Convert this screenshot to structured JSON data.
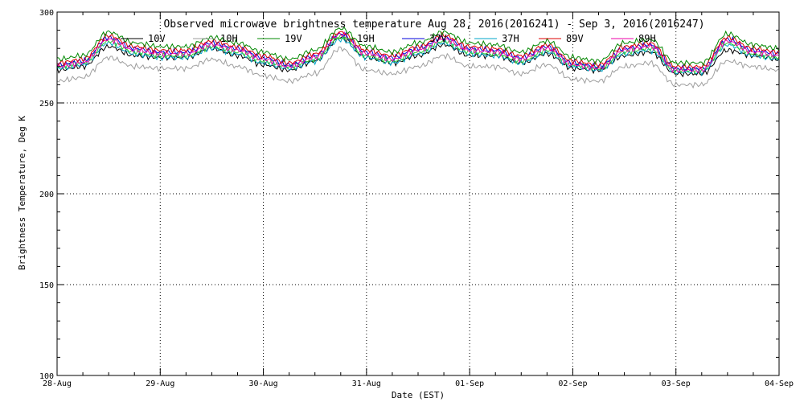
{
  "chart_data": {
    "type": "line",
    "title": "Observed microwave brightness temperature Aug 28, 2016(2016241) - Sep  3, 2016(2016247)",
    "xlabel": "Date (EST)",
    "ylabel": "Brightness Temperature, Deg K",
    "xlim": [
      "2016-08-28",
      "2016-09-04"
    ],
    "ylim": [
      100,
      300
    ],
    "x_ticks": [
      "28-Aug",
      "29-Aug",
      "30-Aug",
      "31-Aug",
      "01-Sep",
      "02-Sep",
      "03-Sep",
      "04-Sep"
    ],
    "y_ticks": [
      100,
      150,
      200,
      250,
      300
    ],
    "grid": true,
    "legend_position": "top-center",
    "x": [
      "2016-08-28 00:00",
      "2016-08-28 06:00",
      "2016-08-28 12:00",
      "2016-08-28 18:00",
      "2016-08-29 00:00",
      "2016-08-29 06:00",
      "2016-08-29 12:00",
      "2016-08-29 18:00",
      "2016-08-30 00:00",
      "2016-08-30 06:00",
      "2016-08-30 12:00",
      "2016-08-30 18:00",
      "2016-08-31 00:00",
      "2016-08-31 06:00",
      "2016-08-31 12:00",
      "2016-08-31 18:00",
      "2016-09-01 00:00",
      "2016-09-01 06:00",
      "2016-09-01 12:00",
      "2016-09-01 18:00",
      "2016-09-02 00:00",
      "2016-09-02 06:00",
      "2016-09-02 12:00",
      "2016-09-02 18:00",
      "2016-09-03 00:00",
      "2016-09-03 06:00",
      "2016-09-03 12:00",
      "2016-09-03 18:00",
      "2016-09-04 00:00"
    ],
    "series": [
      {
        "name": "10V",
        "color": "#000000",
        "values": [
          268,
          270,
          281,
          276,
          275,
          275,
          280,
          276,
          271,
          268,
          273,
          286,
          275,
          272,
          276,
          282,
          276,
          276,
          272,
          277,
          269,
          268,
          276,
          278,
          266,
          266,
          279,
          276,
          274
        ]
      },
      {
        "name": "10H",
        "color": "#9e9e9e",
        "values": [
          262,
          264,
          275,
          270,
          269,
          269,
          274,
          270,
          265,
          262,
          266,
          280,
          268,
          266,
          270,
          276,
          270,
          270,
          266,
          271,
          263,
          262,
          270,
          272,
          260,
          260,
          273,
          270,
          268
        ]
      },
      {
        "name": "19V",
        "color": "#008800",
        "values": [
          274,
          276,
          289,
          283,
          281,
          281,
          286,
          283,
          278,
          274,
          279,
          291,
          281,
          278,
          283,
          289,
          283,
          282,
          278,
          284,
          275,
          273,
          283,
          285,
          272,
          272,
          288,
          282,
          280
        ]
      },
      {
        "name": "19H",
        "color": "#33cc33",
        "values": [
          270,
          272,
          284,
          278,
          276,
          276,
          281,
          278,
          273,
          270,
          274,
          287,
          276,
          273,
          278,
          284,
          278,
          277,
          273,
          279,
          271,
          269,
          278,
          280,
          268,
          268,
          283,
          277,
          275
        ]
      },
      {
        "name": "37V",
        "color": "#0000dd",
        "values": [
          271,
          273,
          286,
          280,
          278,
          278,
          283,
          280,
          275,
          271,
          276,
          288,
          278,
          275,
          280,
          286,
          280,
          279,
          275,
          281,
          272,
          270,
          280,
          282,
          269,
          269,
          285,
          279,
          277
        ]
      },
      {
        "name": "37H",
        "color": "#00a6c8",
        "values": [
          269,
          271,
          283,
          277,
          275,
          275,
          280,
          277,
          272,
          269,
          273,
          285,
          275,
          272,
          277,
          283,
          277,
          276,
          272,
          278,
          270,
          268,
          277,
          279,
          267,
          267,
          282,
          276,
          274
        ]
      },
      {
        "name": "89V",
        "color": "#dd0000",
        "values": [
          272,
          274,
          287,
          281,
          279,
          279,
          284,
          281,
          276,
          272,
          277,
          289,
          279,
          276,
          281,
          287,
          281,
          280,
          276,
          282,
          273,
          271,
          281,
          283,
          270,
          270,
          286,
          280,
          278
        ]
      },
      {
        "name": "89H",
        "color": "#ee00aa",
        "values": [
          270,
          272,
          285,
          279,
          277,
          277,
          282,
          279,
          274,
          270,
          275,
          288,
          277,
          274,
          279,
          285,
          279,
          278,
          274,
          280,
          271,
          269,
          279,
          281,
          268,
          268,
          284,
          278,
          276
        ]
      }
    ]
  }
}
